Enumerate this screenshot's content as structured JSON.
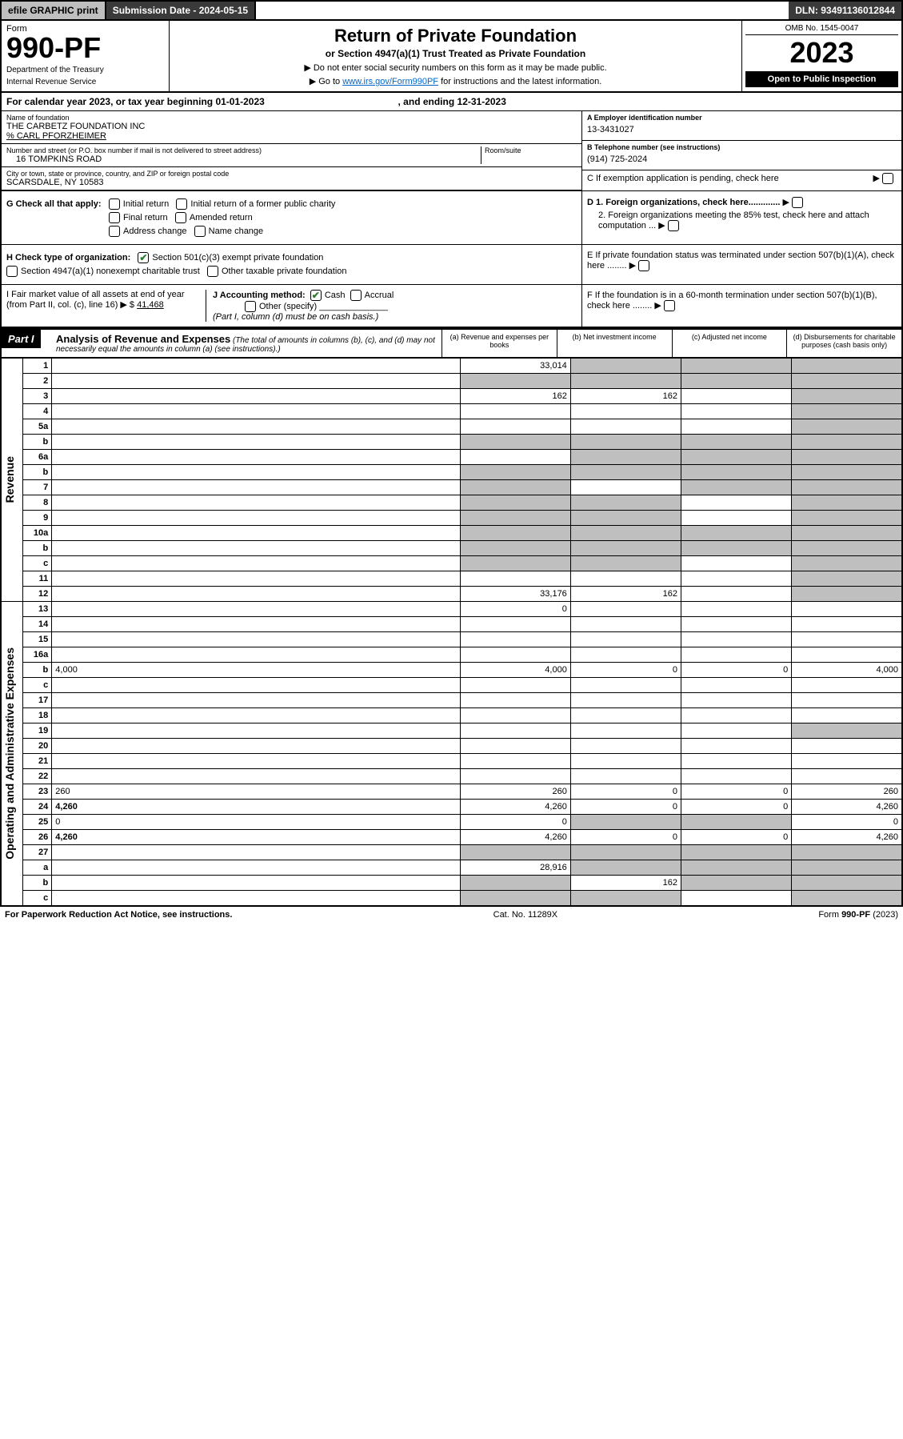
{
  "topbar": {
    "efile": "efile GRAPHIC print",
    "submission_label": "Submission Date - 2024-05-15",
    "dln": "DLN: 93491136012844"
  },
  "header": {
    "form_label": "Form",
    "form_number": "990-PF",
    "dept1": "Department of the Treasury",
    "dept2": "Internal Revenue Service",
    "title": "Return of Private Foundation",
    "subtitle": "or Section 4947(a)(1) Trust Treated as Private Foundation",
    "note1": "▶ Do not enter social security numbers on this form as it may be made public.",
    "note2_pre": "▶ Go to ",
    "note2_link": "www.irs.gov/Form990PF",
    "note2_post": " for instructions and the latest information.",
    "omb": "OMB No. 1545-0047",
    "year": "2023",
    "open": "Open to Public Inspection"
  },
  "calyear": "For calendar year 2023, or tax year beginning 01-01-2023",
  "calyear_end": ", and ending 12-31-2023",
  "entity": {
    "name_label": "Name of foundation",
    "name": "THE CARBETZ FOUNDATION INC",
    "care_of": "% CARL PFORZHEIMER",
    "addr_label": "Number and street (or P.O. box number if mail is not delivered to street address)",
    "addr": "16 TOMPKINS ROAD",
    "room_label": "Room/suite",
    "city_label": "City or town, state or province, country, and ZIP or foreign postal code",
    "city": "SCARSDALE, NY  10583",
    "a_label": "A Employer identification number",
    "a_value": "13-3431027",
    "b_label": "B Telephone number (see instructions)",
    "b_value": "(914) 725-2024",
    "c_label": "C If exemption application is pending, check here"
  },
  "checks": {
    "g_label": "G Check all that apply:",
    "g1": "Initial return",
    "g2": "Initial return of a former public charity",
    "g3": "Final return",
    "g4": "Amended return",
    "g5": "Address change",
    "g6": "Name change",
    "h_label": "H Check type of organization:",
    "h1": "Section 501(c)(3) exempt private foundation",
    "h2": "Section 4947(a)(1) nonexempt charitable trust",
    "h3": "Other taxable private foundation",
    "i_label": "I Fair market value of all assets at end of year (from Part II, col. (c), line 16) ▶ $",
    "i_value": "41,468",
    "j_label": "J Accounting method:",
    "j1": "Cash",
    "j2": "Accrual",
    "j3": "Other (specify)",
    "j_note": "(Part I, column (d) must be on cash basis.)",
    "d1": "D 1. Foreign organizations, check here.............",
    "d2": "2. Foreign organizations meeting the 85% test, check here and attach computation ...",
    "e": "E  If private foundation status was terminated under section 507(b)(1)(A), check here ........",
    "f": "F  If the foundation is in a 60-month termination under section 507(b)(1)(B), check here ........"
  },
  "part1": {
    "label": "Part I",
    "title": "Analysis of Revenue and Expenses",
    "desc": "(The total of amounts in columns (b), (c), and (d) may not necessarily equal the amounts in column (a) (see instructions).)",
    "col_a": "(a) Revenue and expenses per books",
    "col_b": "(b) Net investment income",
    "col_c": "(c) Adjusted net income",
    "col_d": "(d) Disbursements for charitable purposes (cash basis only)"
  },
  "rotlabels": {
    "revenue": "Revenue",
    "expenses": "Operating and Administrative Expenses"
  },
  "rows": [
    {
      "n": "1",
      "d": "",
      "a": "33,014",
      "b": "",
      "c": "",
      "shade": [
        "b",
        "c",
        "d"
      ]
    },
    {
      "n": "2",
      "d": "",
      "a": "",
      "b": "",
      "c": "",
      "shade": [
        "a",
        "b",
        "c",
        "d"
      ]
    },
    {
      "n": "3",
      "d": "",
      "a": "162",
      "b": "162",
      "c": "",
      "shade": [
        "d"
      ]
    },
    {
      "n": "4",
      "d": "",
      "a": "",
      "b": "",
      "c": "",
      "shade": [
        "d"
      ]
    },
    {
      "n": "5a",
      "d": "",
      "a": "",
      "b": "",
      "c": "",
      "shade": [
        "d"
      ]
    },
    {
      "n": "b",
      "d": "",
      "a": "",
      "b": "",
      "c": "",
      "shade": [
        "a",
        "b",
        "c",
        "d"
      ]
    },
    {
      "n": "6a",
      "d": "",
      "a": "",
      "b": "",
      "c": "",
      "shade": [
        "b",
        "c",
        "d"
      ]
    },
    {
      "n": "b",
      "d": "",
      "a": "",
      "b": "",
      "c": "",
      "shade": [
        "a",
        "b",
        "c",
        "d"
      ]
    },
    {
      "n": "7",
      "d": "",
      "a": "",
      "b": "",
      "c": "",
      "shade": [
        "a",
        "c",
        "d"
      ]
    },
    {
      "n": "8",
      "d": "",
      "a": "",
      "b": "",
      "c": "",
      "shade": [
        "a",
        "b",
        "d"
      ]
    },
    {
      "n": "9",
      "d": "",
      "a": "",
      "b": "",
      "c": "",
      "shade": [
        "a",
        "b",
        "d"
      ]
    },
    {
      "n": "10a",
      "d": "",
      "a": "",
      "b": "",
      "c": "",
      "shade": [
        "a",
        "b",
        "c",
        "d"
      ]
    },
    {
      "n": "b",
      "d": "",
      "a": "",
      "b": "",
      "c": "",
      "shade": [
        "a",
        "b",
        "c",
        "d"
      ]
    },
    {
      "n": "c",
      "d": "",
      "a": "",
      "b": "",
      "c": "",
      "shade": [
        "a",
        "b",
        "d"
      ]
    },
    {
      "n": "11",
      "d": "",
      "a": "",
      "b": "",
      "c": "",
      "shade": [
        "d"
      ]
    },
    {
      "n": "12",
      "d": "",
      "a": "33,176",
      "b": "162",
      "c": "",
      "shade": [
        "d"
      ],
      "bold": true
    },
    {
      "n": "13",
      "d": "",
      "a": "0",
      "b": "",
      "c": ""
    },
    {
      "n": "14",
      "d": "",
      "a": "",
      "b": "",
      "c": ""
    },
    {
      "n": "15",
      "d": "",
      "a": "",
      "b": "",
      "c": ""
    },
    {
      "n": "16a",
      "d": "",
      "a": "",
      "b": "",
      "c": ""
    },
    {
      "n": "b",
      "d": "4,000",
      "a": "4,000",
      "b": "0",
      "c": "0"
    },
    {
      "n": "c",
      "d": "",
      "a": "",
      "b": "",
      "c": ""
    },
    {
      "n": "17",
      "d": "",
      "a": "",
      "b": "",
      "c": ""
    },
    {
      "n": "18",
      "d": "",
      "a": "",
      "b": "",
      "c": ""
    },
    {
      "n": "19",
      "d": "",
      "a": "",
      "b": "",
      "c": "",
      "shade": [
        "d"
      ]
    },
    {
      "n": "20",
      "d": "",
      "a": "",
      "b": "",
      "c": ""
    },
    {
      "n": "21",
      "d": "",
      "a": "",
      "b": "",
      "c": ""
    },
    {
      "n": "22",
      "d": "",
      "a": "",
      "b": "",
      "c": ""
    },
    {
      "n": "23",
      "d": "260",
      "a": "260",
      "b": "0",
      "c": "0"
    },
    {
      "n": "24",
      "d": "4,260",
      "a": "4,260",
      "b": "0",
      "c": "0",
      "bold": true
    },
    {
      "n": "25",
      "d": "0",
      "a": "0",
      "b": "",
      "c": "",
      "shade": [
        "b",
        "c"
      ]
    },
    {
      "n": "26",
      "d": "4,260",
      "a": "4,260",
      "b": "0",
      "c": "0",
      "bold": true
    },
    {
      "n": "27",
      "d": "",
      "a": "",
      "b": "",
      "c": "",
      "shade": [
        "a",
        "b",
        "c",
        "d"
      ]
    },
    {
      "n": "a",
      "d": "",
      "a": "28,916",
      "b": "",
      "c": "",
      "shade": [
        "b",
        "c",
        "d"
      ],
      "bold": true
    },
    {
      "n": "b",
      "d": "",
      "a": "",
      "b": "162",
      "c": "",
      "shade": [
        "a",
        "c",
        "d"
      ],
      "bold": true
    },
    {
      "n": "c",
      "d": "",
      "a": "",
      "b": "",
      "c": "",
      "shade": [
        "a",
        "b",
        "d"
      ],
      "bold": true
    }
  ],
  "footer": {
    "left": "For Paperwork Reduction Act Notice, see instructions.",
    "center": "Cat. No. 11289X",
    "right": "Form 990-PF (2023)"
  }
}
